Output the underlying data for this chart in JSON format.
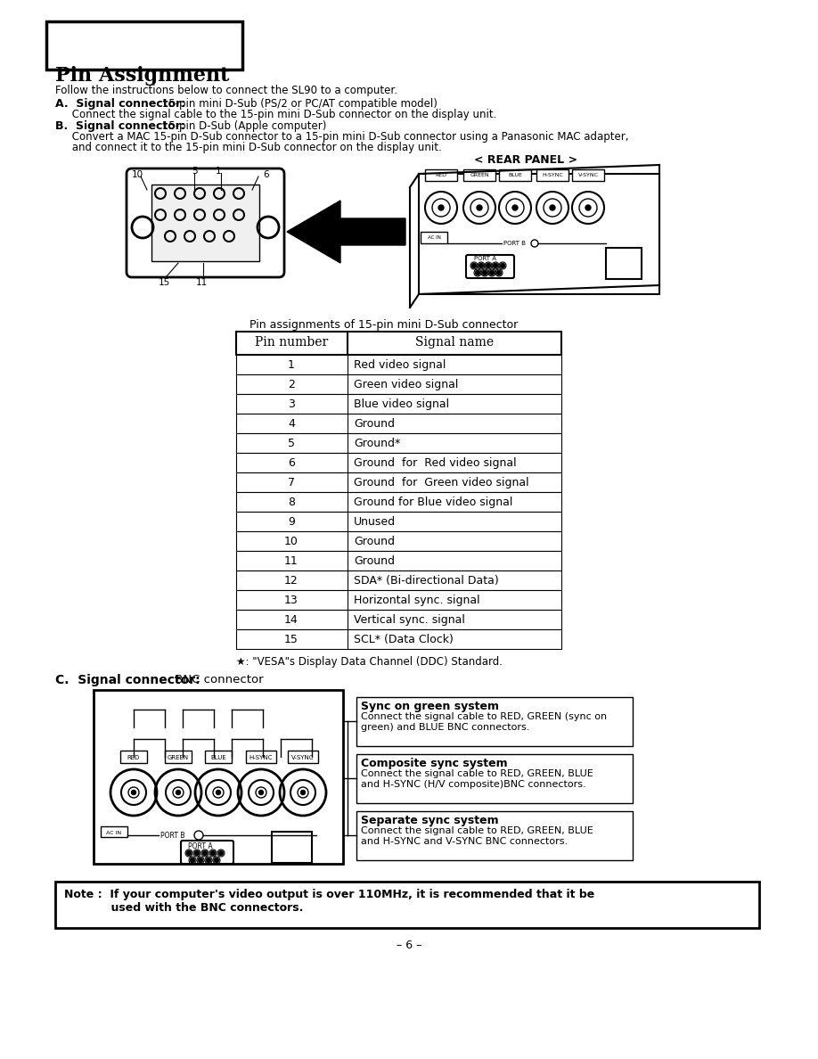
{
  "title": "Pin Assignment",
  "intro_text": "Follow the instructions below to connect the SL90 to a computer.",
  "section_a_bold": "A.  Signal connector:",
  "section_a_text1": " 15-pin mini D-Sub (PS/2 or PC/AT compatible model)",
  "section_a_text2": "     Connect the signal cable to the 15-pin mini D-Sub connector on the display unit.",
  "section_b_bold": "B.  Signal connector:",
  "section_b_text1": " 15-pin D-Sub (Apple computer)",
  "section_b_text2": "     Convert a MAC 15-pin D-Sub connector to a 15-pin mini D-Sub connector using a Panasonic MAC adapter,",
  "section_b_text3": "     and connect it to the 15-pin mini D-Sub connector on the display unit.",
  "rear_panel_label": "< REAR PANEL >",
  "table_caption": "Pin assignments of 15-pin mini D-Sub connector",
  "table_header": [
    "Pin number",
    "Signal name"
  ],
  "table_rows": [
    [
      "1",
      "Red video signal"
    ],
    [
      "2",
      "Green video signal"
    ],
    [
      "3",
      "Blue video signal"
    ],
    [
      "4",
      "Ground"
    ],
    [
      "5",
      "Ground*"
    ],
    [
      "6",
      "Ground  for  Red video signal"
    ],
    [
      "7",
      "Ground  for  Green video signal"
    ],
    [
      "8",
      "Ground for Blue video signal"
    ],
    [
      "9",
      "Unused"
    ],
    [
      "10",
      "Ground"
    ],
    [
      "11",
      "Ground"
    ],
    [
      "12",
      "SDA* (Bi-directional Data)"
    ],
    [
      "13",
      "Horizontal sync. signal"
    ],
    [
      "14",
      "Vertical sync. signal"
    ],
    [
      "15",
      "SCL* (Data Clock)"
    ]
  ],
  "footnote": "★: \"VESA\"s Display Data Channel (DDC) Standard.",
  "section_c_bold": "C.  Signal connector:",
  "section_c_text": " BNC connector",
  "sync_green_title": "Sync on green system",
  "sync_green_text": "Connect the signal cable to RED, GREEN (sync on\ngreen) and BLUE BNC connectors.",
  "composite_title": "Composite sync system",
  "composite_text": "Connect the signal cable to RED, GREEN, BLUE\nand H-SYNC (H/V composite)BNC connectors.",
  "separate_title": "Separate sync system",
  "separate_text": "Connect the signal cable to RED, GREEN, BLUE\nand H-SYNC and V-SYNC BNC connectors.",
  "note_line1": "Note :  If your computer's video output is over 110MHz, it is recommended that it be",
  "note_line2": "            used with the BNC connectors.",
  "page_number": "– 6 –",
  "bg_color": "#ffffff"
}
